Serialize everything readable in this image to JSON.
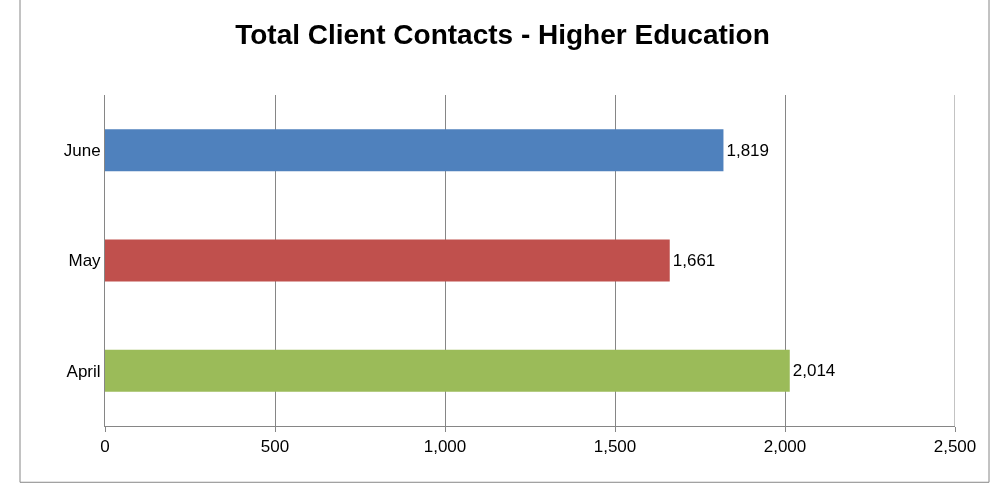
{
  "chart_data": {
    "type": "bar",
    "orientation": "horizontal",
    "title": "Total Client Contacts - Higher Education",
    "categories": [
      "June",
      "May",
      "April"
    ],
    "values": [
      1819,
      1661,
      2014
    ],
    "colors": [
      "#4f81bd",
      "#c0504d",
      "#9bbb59"
    ],
    "value_labels": [
      "1,819",
      "1,661",
      "2,014"
    ],
    "xlim": [
      0,
      2500
    ],
    "xticks": [
      0,
      500,
      {
        "value": 1000,
        "label": "1,000"
      },
      {
        "value": 1500,
        "label": "1,500"
      },
      {
        "value": 2000,
        "label": "2,000"
      },
      {
        "value": 2500,
        "label": "2,500"
      }
    ],
    "grid": "x"
  }
}
